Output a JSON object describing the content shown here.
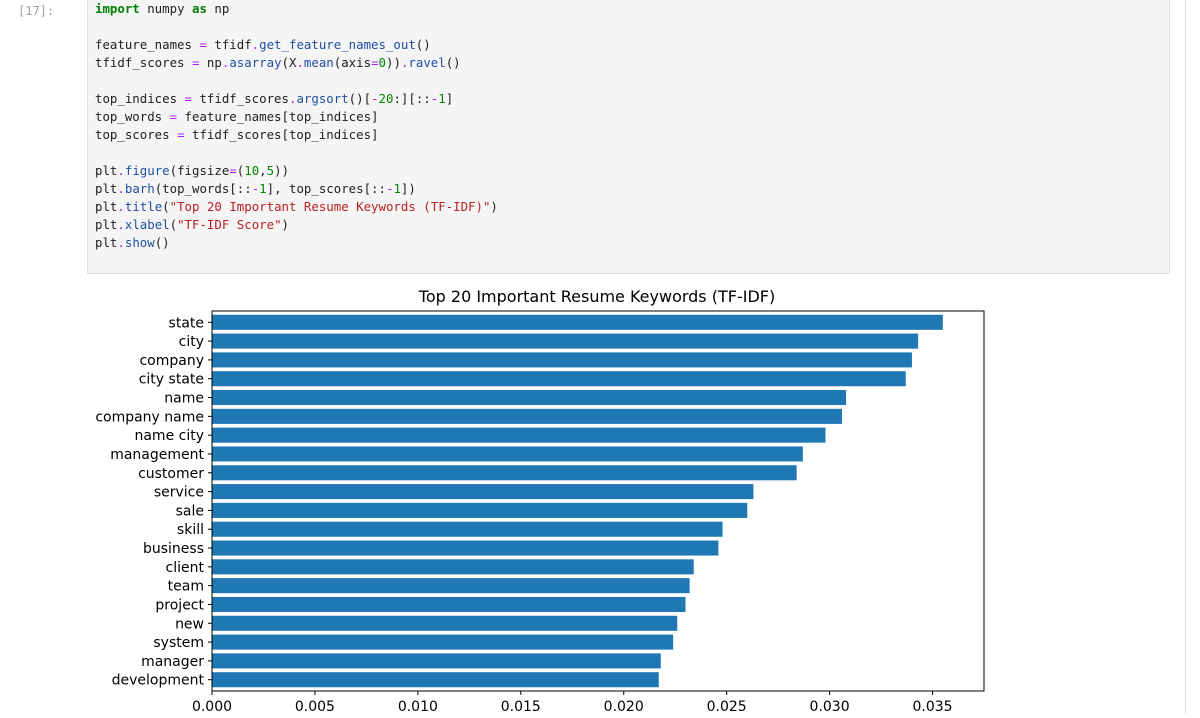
{
  "cell": {
    "prompt": "[17]:",
    "lines": [
      [
        {
          "t": "import",
          "c": "kw"
        },
        {
          "t": " numpy "
        },
        {
          "t": "as",
          "c": "kw"
        },
        {
          "t": " np"
        }
      ],
      [],
      [
        {
          "t": "feature_names "
        },
        {
          "t": "=",
          "c": "op"
        },
        {
          "t": " tfidf"
        },
        {
          "t": ".",
          "c": "op"
        },
        {
          "t": "get_feature_names_out",
          "c": "fn"
        },
        {
          "t": "()"
        }
      ],
      [
        {
          "t": "tfidf_scores "
        },
        {
          "t": "=",
          "c": "op"
        },
        {
          "t": " np"
        },
        {
          "t": ".",
          "c": "op"
        },
        {
          "t": "asarray",
          "c": "fn"
        },
        {
          "t": "(X"
        },
        {
          "t": ".",
          "c": "op"
        },
        {
          "t": "mean",
          "c": "fn"
        },
        {
          "t": "(axis"
        },
        {
          "t": "=",
          "c": "op"
        },
        {
          "t": "0",
          "c": "num"
        },
        {
          "t": "))"
        },
        {
          "t": ".",
          "c": "op"
        },
        {
          "t": "ravel",
          "c": "fn"
        },
        {
          "t": "()"
        }
      ],
      [],
      [
        {
          "t": "top_indices "
        },
        {
          "t": "=",
          "c": "op"
        },
        {
          "t": " tfidf_scores"
        },
        {
          "t": ".",
          "c": "op"
        },
        {
          "t": "argsort",
          "c": "fn"
        },
        {
          "t": "()["
        },
        {
          "t": "-",
          "c": "op"
        },
        {
          "t": "20",
          "c": "num"
        },
        {
          "t": ":][::"
        },
        {
          "t": "-",
          "c": "op"
        },
        {
          "t": "1",
          "c": "num"
        },
        {
          "t": "]"
        }
      ],
      [
        {
          "t": "top_words "
        },
        {
          "t": "=",
          "c": "op"
        },
        {
          "t": " feature_names[top_indices]"
        }
      ],
      [
        {
          "t": "top_scores "
        },
        {
          "t": "=",
          "c": "op"
        },
        {
          "t": " tfidf_scores[top_indices]"
        }
      ],
      [],
      [
        {
          "t": "plt"
        },
        {
          "t": ".",
          "c": "op"
        },
        {
          "t": "figure",
          "c": "fn"
        },
        {
          "t": "(figsize"
        },
        {
          "t": "=",
          "c": "op"
        },
        {
          "t": "("
        },
        {
          "t": "10",
          "c": "num"
        },
        {
          "t": ","
        },
        {
          "t": "5",
          "c": "num"
        },
        {
          "t": "))"
        }
      ],
      [
        {
          "t": "plt"
        },
        {
          "t": ".",
          "c": "op"
        },
        {
          "t": "barh",
          "c": "fn"
        },
        {
          "t": "(top_words[::"
        },
        {
          "t": "-",
          "c": "op"
        },
        {
          "t": "1",
          "c": "num"
        },
        {
          "t": "], top_scores[::"
        },
        {
          "t": "-",
          "c": "op"
        },
        {
          "t": "1",
          "c": "num"
        },
        {
          "t": "])"
        }
      ],
      [
        {
          "t": "plt"
        },
        {
          "t": ".",
          "c": "op"
        },
        {
          "t": "title",
          "c": "fn"
        },
        {
          "t": "("
        },
        {
          "t": "\"Top 20 Important Resume Keywords (TF-IDF)\"",
          "c": "str"
        },
        {
          "t": ")"
        }
      ],
      [
        {
          "t": "plt"
        },
        {
          "t": ".",
          "c": "op"
        },
        {
          "t": "xlabel",
          "c": "fn"
        },
        {
          "t": "("
        },
        {
          "t": "\"TF-IDF Score\"",
          "c": "str"
        },
        {
          "t": ")"
        }
      ],
      [
        {
          "t": "plt"
        },
        {
          "t": ".",
          "c": "op"
        },
        {
          "t": "show",
          "c": "fn"
        },
        {
          "t": "()"
        }
      ]
    ]
  },
  "colors": {
    "bar": "#1f77b4",
    "axis": "#000000"
  },
  "chart_data": {
    "type": "bar",
    "orientation": "horizontal",
    "title": "Top 20 Important Resume Keywords (TF-IDF)",
    "xlabel": "",
    "ylabel": "",
    "categories": [
      "state",
      "city",
      "company",
      "city state",
      "name",
      "company name",
      "name city",
      "management",
      "customer",
      "service",
      "sale",
      "skill",
      "business",
      "client",
      "team",
      "project",
      "new",
      "system",
      "manager",
      "development"
    ],
    "values": [
      0.0355,
      0.0343,
      0.034,
      0.0337,
      0.0308,
      0.0306,
      0.0298,
      0.0287,
      0.0284,
      0.0263,
      0.026,
      0.0248,
      0.0246,
      0.0234,
      0.0232,
      0.023,
      0.0226,
      0.0224,
      0.0218,
      0.0217
    ],
    "xlim": [
      0,
      0.0375
    ],
    "xticks": [
      0.0,
      0.005,
      0.01,
      0.015,
      0.02,
      0.025,
      0.03,
      0.035
    ],
    "xtick_labels": [
      "0.000",
      "0.005",
      "0.010",
      "0.015",
      "0.020",
      "0.025",
      "0.030",
      "0.035"
    ],
    "grid": false
  }
}
